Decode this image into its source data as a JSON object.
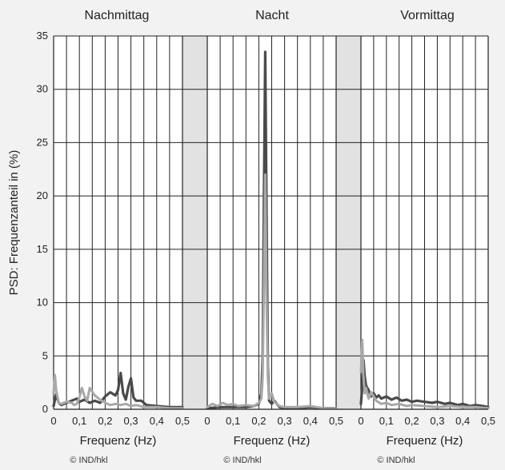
{
  "chart_data": {
    "type": "line",
    "ylabel": "PSD: Frequenzanteil in (%)",
    "ylim": [
      0,
      35
    ],
    "yticks": [
      "0",
      "5",
      "10",
      "15",
      "20",
      "25",
      "30",
      "35"
    ],
    "xticks": [
      "0",
      "0,1",
      "0,2",
      "0,3",
      "0,4",
      "0,5"
    ],
    "xlim": [
      0,
      0.5
    ],
    "grid": true,
    "colors": {
      "dark": "#4a4a4a",
      "light": "#a8a8a8",
      "gap": "#e2e2e2",
      "plot_bg": "#ffffff"
    },
    "panels": [
      {
        "title": "Nachmittag",
        "xlabel": "Frequenz (Hz)",
        "credit": "© IND/hkl",
        "series": [
          {
            "key": "dark",
            "x": [
              0,
              0.01,
              0.02,
              0.03,
              0.05,
              0.07,
              0.09,
              0.1,
              0.12,
              0.14,
              0.16,
              0.18,
              0.2,
              0.22,
              0.24,
              0.25,
              0.26,
              0.27,
              0.28,
              0.29,
              0.3,
              0.31,
              0.32,
              0.34,
              0.36,
              0.4,
              0.45,
              0.5
            ],
            "y": [
              0.3,
              1.4,
              0.6,
              0.4,
              0.6,
              0.8,
              1.0,
              0.7,
              0.9,
              0.6,
              0.8,
              0.6,
              1.2,
              1.6,
              1.3,
              1.8,
              3.4,
              1.5,
              0.9,
              2.1,
              2.9,
              1.1,
              0.8,
              0.8,
              0.4,
              0.3,
              0.2,
              0.2
            ]
          },
          {
            "key": "light",
            "x": [
              0,
              0.005,
              0.01,
              0.02,
              0.03,
              0.05,
              0.07,
              0.08,
              0.09,
              0.1,
              0.11,
              0.12,
              0.13,
              0.14,
              0.16,
              0.18,
              0.2,
              0.22,
              0.24,
              0.26,
              0.28,
              0.3,
              0.32,
              0.35,
              0.4,
              0.45,
              0.5
            ],
            "y": [
              1.5,
              3.2,
              1.8,
              0.6,
              0.5,
              0.7,
              0.6,
              0.4,
              0.5,
              1.1,
              2.0,
              1.2,
              0.8,
              2.0,
              1.3,
              0.9,
              0.6,
              0.4,
              0.5,
              0.4,
              0.5,
              0.3,
              0.4,
              0.2,
              0.2,
              0.1,
              0.1
            ]
          }
        ]
      },
      {
        "title": "Nacht",
        "xlabel": "Frequenz (Hz)",
        "credit": "© IND/hkl",
        "series": [
          {
            "key": "dark",
            "x": [
              0,
              0.05,
              0.1,
              0.15,
              0.18,
              0.2,
              0.21,
              0.215,
              0.22,
              0.225,
              0.23,
              0.235,
              0.24,
              0.25,
              0.26,
              0.28,
              0.3,
              0.35,
              0.4,
              0.45,
              0.5
            ],
            "y": [
              0.1,
              0.2,
              0.2,
              0.2,
              0.3,
              0.5,
              1.5,
              5.0,
              20.0,
              33.5,
              18.0,
              4.0,
              0.8,
              0.5,
              0.8,
              0.2,
              0.1,
              0.1,
              0.2,
              0.1,
              0.1
            ]
          },
          {
            "key": "light",
            "x": [
              0,
              0.02,
              0.04,
              0.06,
              0.08,
              0.1,
              0.12,
              0.15,
              0.18,
              0.2,
              0.21,
              0.215,
              0.22,
              0.225,
              0.23,
              0.235,
              0.24,
              0.25,
              0.26,
              0.28,
              0.3,
              0.35,
              0.4,
              0.45,
              0.5
            ],
            "y": [
              0.2,
              0.5,
              0.3,
              0.6,
              0.4,
              0.5,
              0.3,
              0.4,
              0.3,
              0.6,
              1.0,
              3.0,
              12.0,
              22.0,
              10.0,
              3.0,
              1.0,
              1.5,
              0.7,
              0.3,
              0.2,
              0.2,
              0.3,
              0.1,
              0.1
            ]
          }
        ]
      },
      {
        "title": "Vormittag",
        "xlabel": "Frequenz (Hz)",
        "credit": "© IND/hkl",
        "series": [
          {
            "key": "dark",
            "x": [
              0,
              0.005,
              0.01,
              0.015,
              0.02,
              0.03,
              0.04,
              0.05,
              0.06,
              0.07,
              0.08,
              0.1,
              0.12,
              0.14,
              0.16,
              0.18,
              0.2,
              0.22,
              0.25,
              0.28,
              0.3,
              0.33,
              0.35,
              0.38,
              0.4,
              0.43,
              0.45,
              0.48,
              0.5
            ],
            "y": [
              0.5,
              2.0,
              4.6,
              3.0,
              2.2,
              1.8,
              1.2,
              1.5,
              1.1,
              1.3,
              1.0,
              1.2,
              0.9,
              1.1,
              0.8,
              0.9,
              0.7,
              0.8,
              0.7,
              0.6,
              0.7,
              0.5,
              0.6,
              0.4,
              0.5,
              0.3,
              0.4,
              0.3,
              0.2
            ]
          },
          {
            "key": "light",
            "x": [
              0,
              0.005,
              0.01,
              0.015,
              0.02,
              0.03,
              0.04,
              0.06,
              0.08,
              0.1,
              0.12,
              0.15,
              0.18,
              0.2,
              0.25,
              0.3,
              0.35,
              0.4,
              0.45,
              0.5
            ],
            "y": [
              3.5,
              6.5,
              3.0,
              1.5,
              2.0,
              1.0,
              1.6,
              0.8,
              0.5,
              0.6,
              0.4,
              0.5,
              0.3,
              0.4,
              0.3,
              0.2,
              0.3,
              0.2,
              0.2,
              0.1
            ]
          }
        ]
      }
    ]
  }
}
